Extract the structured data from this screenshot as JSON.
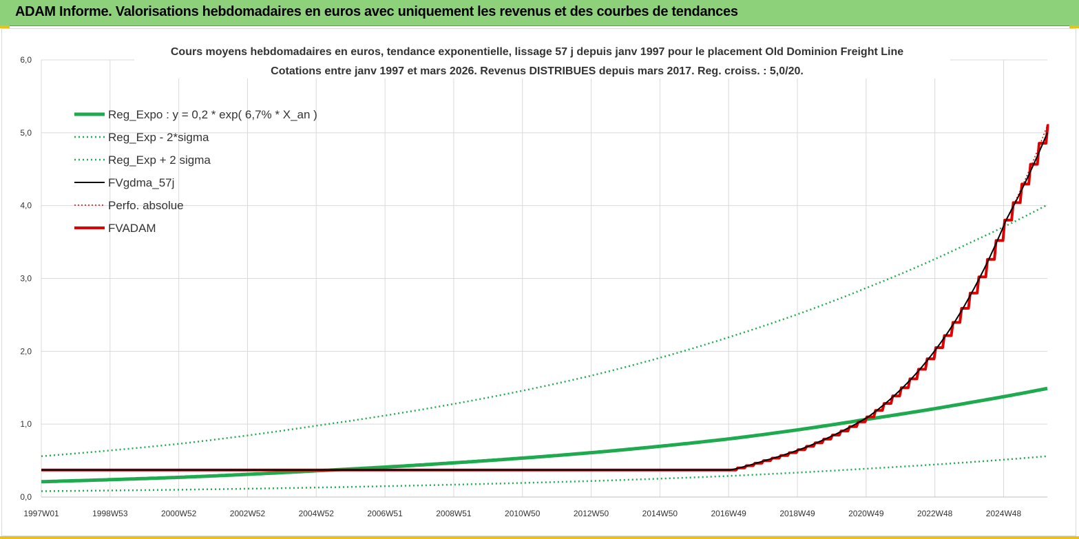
{
  "header": {
    "title": "ADAM Informe. Valorisations hebdomadaires en euros avec uniquement les revenus et des courbes de tendances"
  },
  "chart_data": {
    "type": "line",
    "title_line1": "Cours moyens hebdomadaires en euros, tendance exponentielle, lissage 57 j depuis janv 1997  pour le placement Old Dominion Freight Line",
    "title_line2": "Cotations entre janv 1997 et mars 2026. Revenus  DISTRIBUES depuis mars 2017.  Reg. croiss. : 5,0/20.",
    "x_tick_labels": [
      "1997W01",
      "1998W53",
      "2000W52",
      "2002W52",
      "2004W52",
      "2006W51",
      "2008W51",
      "2010W50",
      "2012W50",
      "2014W50",
      "2016W49",
      "2018W49",
      "2020W49",
      "2022W48",
      "2024W48"
    ],
    "x_range_years": [
      1997.0,
      2026.2
    ],
    "y_tick_labels": [
      "0,0",
      "1,0",
      "2,0",
      "3,0",
      "4,0",
      "5,0",
      "6,0"
    ],
    "ylim": [
      0,
      6
    ],
    "grid": true,
    "legend_position": "top-left",
    "colors": {
      "reg_expo": "#1faa4f",
      "fvgdma": "#000000",
      "perfo": "#e00000",
      "fvadam": "#e00000",
      "grid": "#d9d9d9"
    },
    "series": [
      {
        "name": "Reg_Expo : y = 0,2 * exp( 6,7% *  X_an )",
        "style": "thick-green",
        "x": [
          1997.0,
          2001.0,
          2005.0,
          2009.0,
          2013.0,
          2017.0,
          2021.0,
          2024.0,
          2026.2
        ],
        "y": [
          0.21,
          0.27,
          0.36,
          0.47,
          0.61,
          0.8,
          1.07,
          1.3,
          1.49
        ]
      },
      {
        "name": "Reg_Exp - 2*sigma",
        "style": "dotted-green",
        "x": [
          1997.0,
          2001.0,
          2005.0,
          2009.0,
          2013.0,
          2017.0,
          2021.0,
          2024.0,
          2026.2
        ],
        "y": [
          0.08,
          0.1,
          0.13,
          0.17,
          0.22,
          0.29,
          0.39,
          0.48,
          0.56
        ]
      },
      {
        "name": "Reg_Exp + 2 sigma",
        "style": "dotted-green",
        "x": [
          1997.0,
          2001.0,
          2005.0,
          2009.0,
          2013.0,
          2017.0,
          2021.0,
          2024.0,
          2026.2
        ],
        "y": [
          0.56,
          0.73,
          0.98,
          1.28,
          1.67,
          2.2,
          2.88,
          3.5,
          4.01
        ]
      },
      {
        "name": "FVgdma_57j",
        "style": "black",
        "x": [
          1997.0,
          2017.0,
          2018.0,
          2019.0,
          2020.0,
          2021.0,
          2022.0,
          2023.0,
          2024.0,
          2025.0,
          2026.2
        ],
        "y": [
          0.37,
          0.37,
          0.5,
          0.65,
          0.85,
          1.1,
          1.5,
          2.05,
          2.8,
          3.8,
          5.0
        ]
      },
      {
        "name": "Perfo. absolue",
        "style": "dotted-red",
        "x": [
          1997.0,
          2017.0,
          2018.0,
          2019.0,
          2020.0,
          2021.0,
          2022.0,
          2023.0,
          2024.0,
          2025.0,
          2026.2
        ],
        "y": [
          0.37,
          0.37,
          0.5,
          0.65,
          0.85,
          1.1,
          1.5,
          2.05,
          2.8,
          3.8,
          5.1
        ]
      },
      {
        "name": "FVADAM",
        "style": "thick-red-step",
        "x": [
          1997.0,
          2017.0,
          2018.0,
          2019.0,
          2020.0,
          2021.0,
          2022.0,
          2023.0,
          2024.0,
          2025.0,
          2026.2
        ],
        "y": [
          0.37,
          0.37,
          0.5,
          0.65,
          0.85,
          1.1,
          1.5,
          2.05,
          2.8,
          3.8,
          5.1
        ]
      }
    ]
  }
}
